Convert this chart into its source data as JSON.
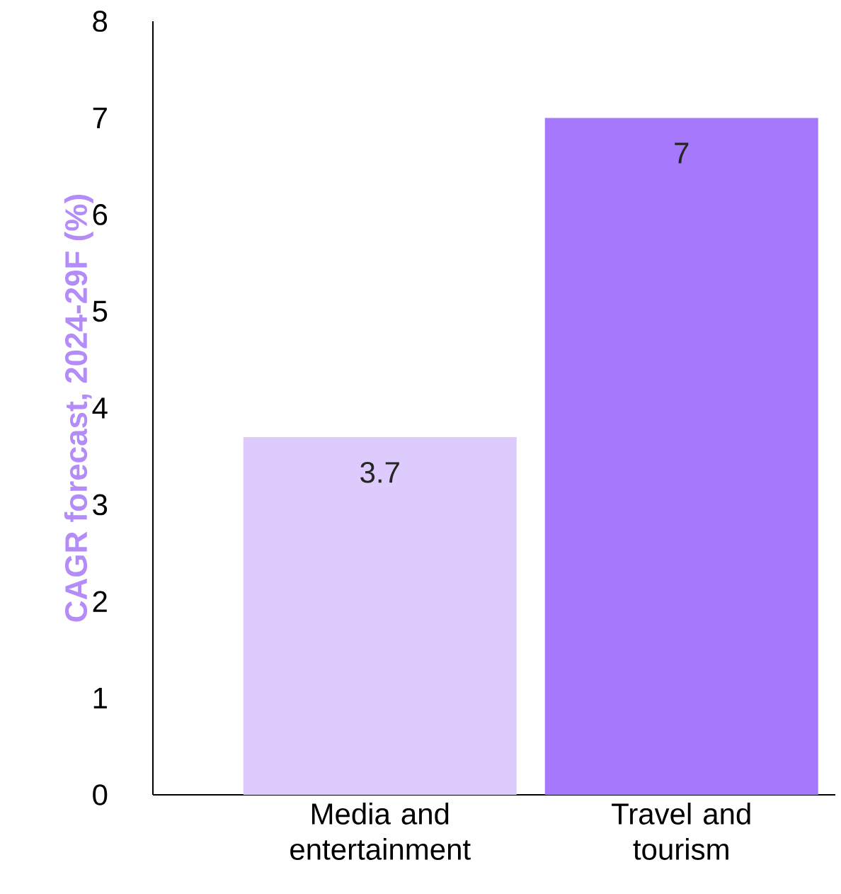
{
  "chart_data": {
    "type": "bar",
    "ylabel": "CAGR forecast, 2024-29F (%)",
    "categories": [
      "Media and entertainment",
      "Travel and tourism"
    ],
    "values": [
      3.7,
      7
    ],
    "colors": [
      "#dccbfc",
      "#a679fc"
    ],
    "value_labels": [
      "3.7",
      "7"
    ],
    "ylim": [
      0,
      8
    ],
    "yticks": [
      0,
      1,
      2,
      3,
      4,
      5,
      6,
      7,
      8
    ]
  }
}
